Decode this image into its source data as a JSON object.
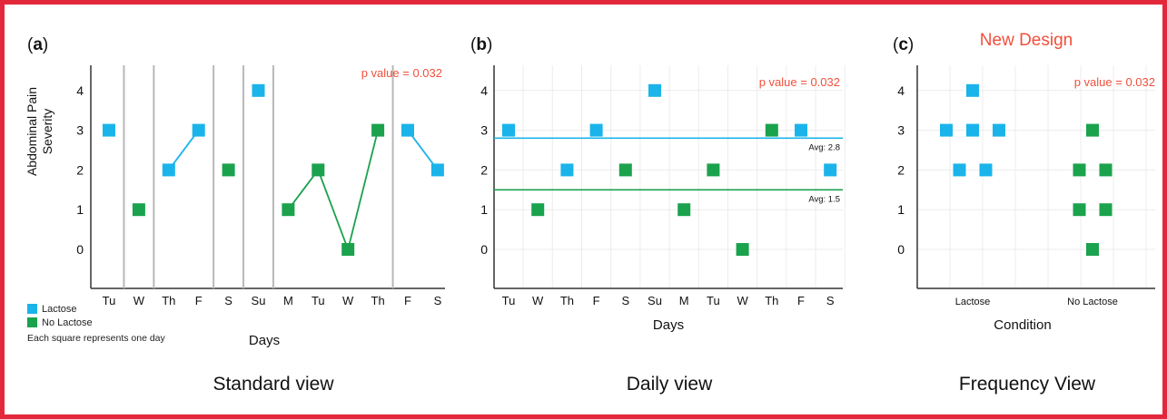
{
  "colors": {
    "lactose": "#1ab4ea",
    "no_lactose": "#1ba24d",
    "pvalue": "#f0503c",
    "new_design": "#f0503c",
    "frame": "#e4283c",
    "axis": "#333333",
    "divider": "#b8b8b8"
  },
  "header": {
    "new_design": "New Design"
  },
  "legend": {
    "items": [
      {
        "label": "Lactose",
        "color": "#1ab4ea"
      },
      {
        "label": "No Lactose",
        "color": "#1ba24d"
      }
    ],
    "note": "Each square represents one day"
  },
  "chart_data": [
    {
      "type": "scatter",
      "panel_label": "(a)",
      "caption": "Standard view",
      "ylabel_lines": [
        "Abdominal Pain",
        "Severity"
      ],
      "xlabel": "Days",
      "pvalue": "p value = 0.032",
      "ylim": [
        -1,
        5
      ],
      "yticks": [
        0,
        1,
        2,
        3,
        4
      ],
      "categories": [
        "Tu",
        "W",
        "Th",
        "F",
        "S",
        "Su",
        "M",
        "Tu",
        "W",
        "Th",
        "F",
        "S"
      ],
      "points": [
        {
          "x": 0,
          "y": 3,
          "series": "Lactose"
        },
        {
          "x": 1,
          "y": 1,
          "series": "No Lactose"
        },
        {
          "x": 2,
          "y": 2,
          "series": "Lactose"
        },
        {
          "x": 3,
          "y": 3,
          "series": "Lactose"
        },
        {
          "x": 4,
          "y": 2,
          "series": "No Lactose"
        },
        {
          "x": 5,
          "y": 4,
          "series": "Lactose"
        },
        {
          "x": 6,
          "y": 1,
          "series": "No Lactose"
        },
        {
          "x": 7,
          "y": 2,
          "series": "No Lactose"
        },
        {
          "x": 8,
          "y": 0,
          "series": "No Lactose"
        },
        {
          "x": 9,
          "y": 3,
          "series": "No Lactose"
        },
        {
          "x": 10,
          "y": 3,
          "series": "Lactose"
        },
        {
          "x": 11,
          "y": 2,
          "series": "Lactose"
        }
      ],
      "connected_runs": [
        [
          2,
          3
        ],
        [
          6,
          7,
          8,
          9
        ],
        [
          10,
          11
        ]
      ],
      "dividers_after": [
        0,
        1,
        3,
        4,
        5,
        9
      ],
      "grid": false
    },
    {
      "type": "scatter",
      "panel_label": "(b)",
      "caption": "Daily view",
      "xlabel": "Days",
      "pvalue": "p value = 0.032",
      "ylim": [
        -1,
        5
      ],
      "yticks": [
        0,
        1,
        2,
        3,
        4
      ],
      "categories": [
        "Tu",
        "W",
        "Th",
        "F",
        "S",
        "Su",
        "M",
        "Tu",
        "W",
        "Th",
        "F",
        "S"
      ],
      "points": [
        {
          "x": 0,
          "y": 3,
          "series": "Lactose"
        },
        {
          "x": 1,
          "y": 1,
          "series": "No Lactose"
        },
        {
          "x": 2,
          "y": 2,
          "series": "Lactose"
        },
        {
          "x": 3,
          "y": 3,
          "series": "Lactose"
        },
        {
          "x": 4,
          "y": 2,
          "series": "No Lactose"
        },
        {
          "x": 5,
          "y": 4,
          "series": "Lactose"
        },
        {
          "x": 6,
          "y": 1,
          "series": "No Lactose"
        },
        {
          "x": 7,
          "y": 2,
          "series": "No Lactose"
        },
        {
          "x": 8,
          "y": 0,
          "series": "No Lactose"
        },
        {
          "x": 9,
          "y": 3,
          "series": "No Lactose"
        },
        {
          "x": 10,
          "y": 3,
          "series": "Lactose"
        },
        {
          "x": 11,
          "y": 2,
          "series": "Lactose"
        }
      ],
      "averages": [
        {
          "series": "Lactose",
          "value": 2.8,
          "label": "Avg: 2.8"
        },
        {
          "series": "No Lactose",
          "value": 1.5,
          "label": "Avg: 1.5"
        }
      ],
      "grid": true
    },
    {
      "type": "scatter",
      "panel_label": "(c)",
      "caption": "Frequency View",
      "xlabel": "Condition",
      "pvalue": "p value = 0.032",
      "ylim": [
        -1,
        5
      ],
      "yticks": [
        0,
        1,
        2,
        3,
        4
      ],
      "categories": [
        "Lactose",
        "No Lactose"
      ],
      "points": [
        {
          "x": 0,
          "y": 4,
          "series": "Lactose"
        },
        {
          "x": 0,
          "y": 3,
          "series": "Lactose"
        },
        {
          "x": 0,
          "y": 3,
          "series": "Lactose"
        },
        {
          "x": 0,
          "y": 3,
          "series": "Lactose"
        },
        {
          "x": 0,
          "y": 2,
          "series": "Lactose"
        },
        {
          "x": 0,
          "y": 2,
          "series": "Lactose"
        },
        {
          "x": 1,
          "y": 3,
          "series": "No Lactose"
        },
        {
          "x": 1,
          "y": 2,
          "series": "No Lactose"
        },
        {
          "x": 1,
          "y": 2,
          "series": "No Lactose"
        },
        {
          "x": 1,
          "y": 1,
          "series": "No Lactose"
        },
        {
          "x": 1,
          "y": 1,
          "series": "No Lactose"
        },
        {
          "x": 1,
          "y": 0,
          "series": "No Lactose"
        }
      ],
      "grid": true
    }
  ]
}
